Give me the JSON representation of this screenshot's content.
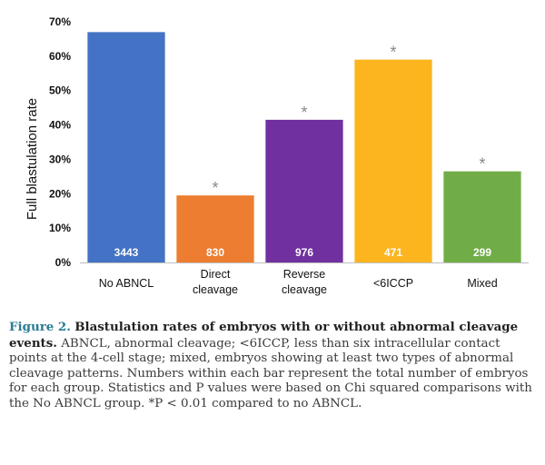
{
  "chart_data": {
    "type": "bar",
    "categories": [
      "No ABNCL",
      "Direct cleavage",
      "Reverse cleavage",
      "<6ICCP",
      "Mixed"
    ],
    "category_lines": [
      [
        "No ABNCL"
      ],
      [
        "Direct",
        "cleavage"
      ],
      [
        "Reverse",
        "cleavage"
      ],
      [
        "<6ICCP"
      ],
      [
        "Mixed"
      ]
    ],
    "values": [
      67,
      19.5,
      41.5,
      59,
      26.5
    ],
    "counts": [
      "3443",
      "830",
      "976",
      "471",
      "299"
    ],
    "significant": [
      false,
      true,
      true,
      true,
      true
    ],
    "significance_marker": "*",
    "colors": [
      "#4472c4",
      "#ed7d31",
      "#7030a0",
      "#fcb51f",
      "#70ad47"
    ],
    "xlabel": "",
    "ylabel": "Full blastulation rate",
    "ylim": [
      0,
      70
    ],
    "yticks": [
      0,
      10,
      20,
      30,
      40,
      50,
      60,
      70
    ],
    "ytick_labels": [
      "0%",
      "10%",
      "20%",
      "30%",
      "40%",
      "50%",
      "60%",
      "70%"
    ],
    "grid": false
  },
  "caption": {
    "figure_label": "Figure 2.",
    "title": "Blastulation rates of embryos with or without abnormal cleavage events.",
    "body": "ABNCL, abnormal cleavage; <6ICCP, less than six intracellular contact points at the 4-cell stage; mixed, embryos showing at least two types of abnormal cleavage patterns. Numbers within each bar represent the total number of embryos for each group. Statistics and P values were based on Chi squared comparisons with the No ABNCL group. *P < 0.01 compared to no ABNCL."
  }
}
